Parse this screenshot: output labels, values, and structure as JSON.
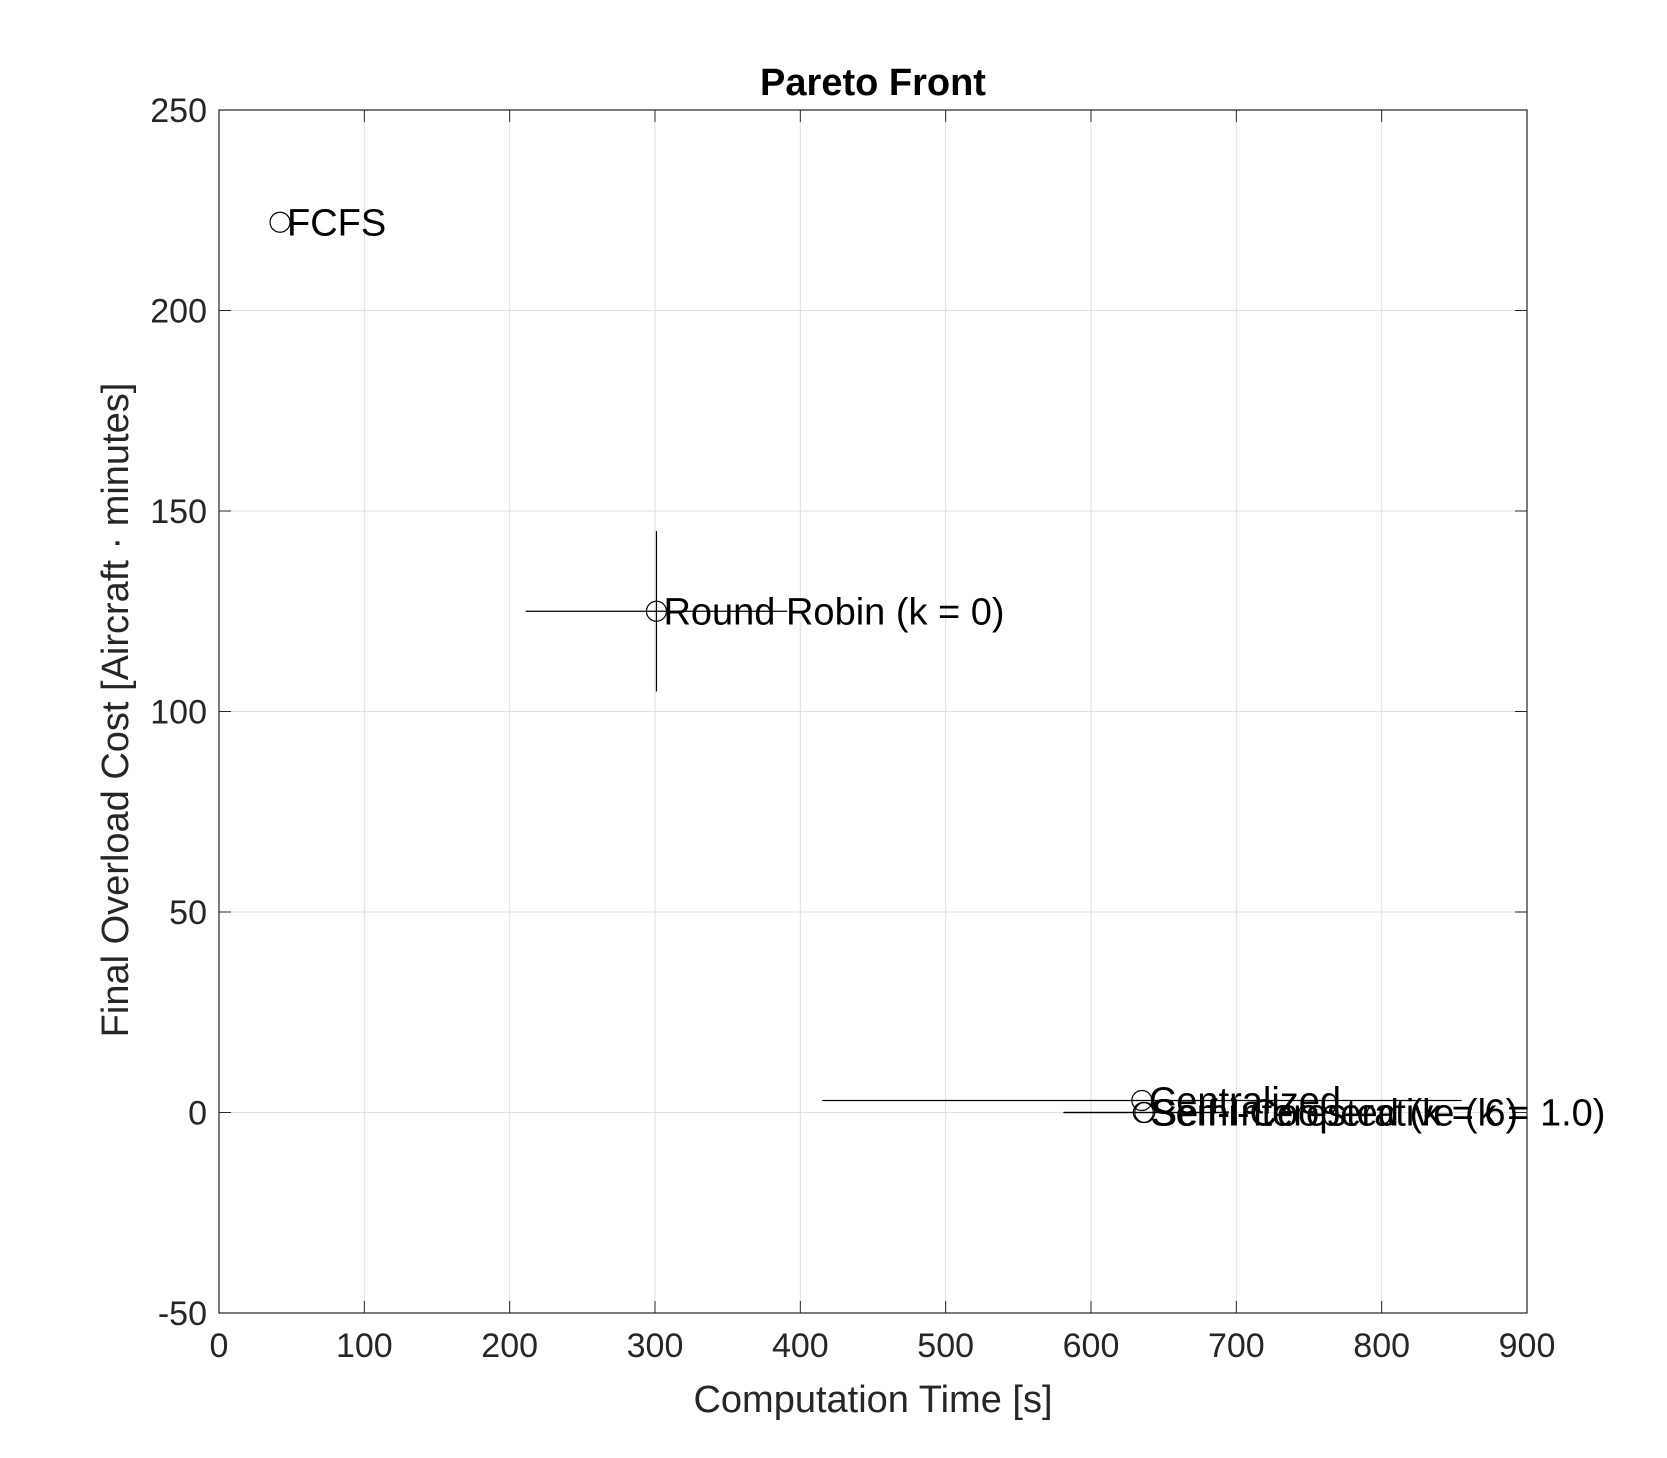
{
  "chart_data": {
    "type": "scatter",
    "title": "Pareto Front",
    "xlabel": "Computation Time [s]",
    "ylabel": "Final Overload Cost [Aircraft · minutes]",
    "xlim": [
      0,
      900
    ],
    "ylim": [
      -50,
      250
    ],
    "xticks": [
      0,
      100,
      200,
      300,
      400,
      500,
      600,
      700,
      800,
      900
    ],
    "yticks": [
      -50,
      0,
      50,
      100,
      150,
      200,
      250
    ],
    "xtick_labels": [
      "0",
      "100",
      "200",
      "300",
      "400",
      "500",
      "600",
      "700",
      "800",
      "900"
    ],
    "ytick_labels": [
      "-50",
      "0",
      "50",
      "100",
      "150",
      "200",
      "250"
    ],
    "grid": true,
    "points": [
      {
        "label": "FCFS",
        "x": 42,
        "y": 222,
        "xerr": 0,
        "yerr": 0
      },
      {
        "label": "Round Robin (k = 0)",
        "x": 301,
        "y": 125,
        "xerr": 90,
        "yerr": 20
      },
      {
        "label": "Centralized",
        "x": 635,
        "y": 3,
        "xerr": 220,
        "yerr": 0
      },
      {
        "label": "Semi-Cooperative (k = 1.0)",
        "x": 636,
        "y": 0,
        "xerr": 55,
        "yerr": 0
      },
      {
        "label": "Self-Interested (k = 6)",
        "x": 637,
        "y": 0,
        "xerr": 55,
        "yerr": 0
      }
    ],
    "colors": {
      "axes": "#262626",
      "grid": "#dfdfdf",
      "marker": "#000000"
    }
  }
}
